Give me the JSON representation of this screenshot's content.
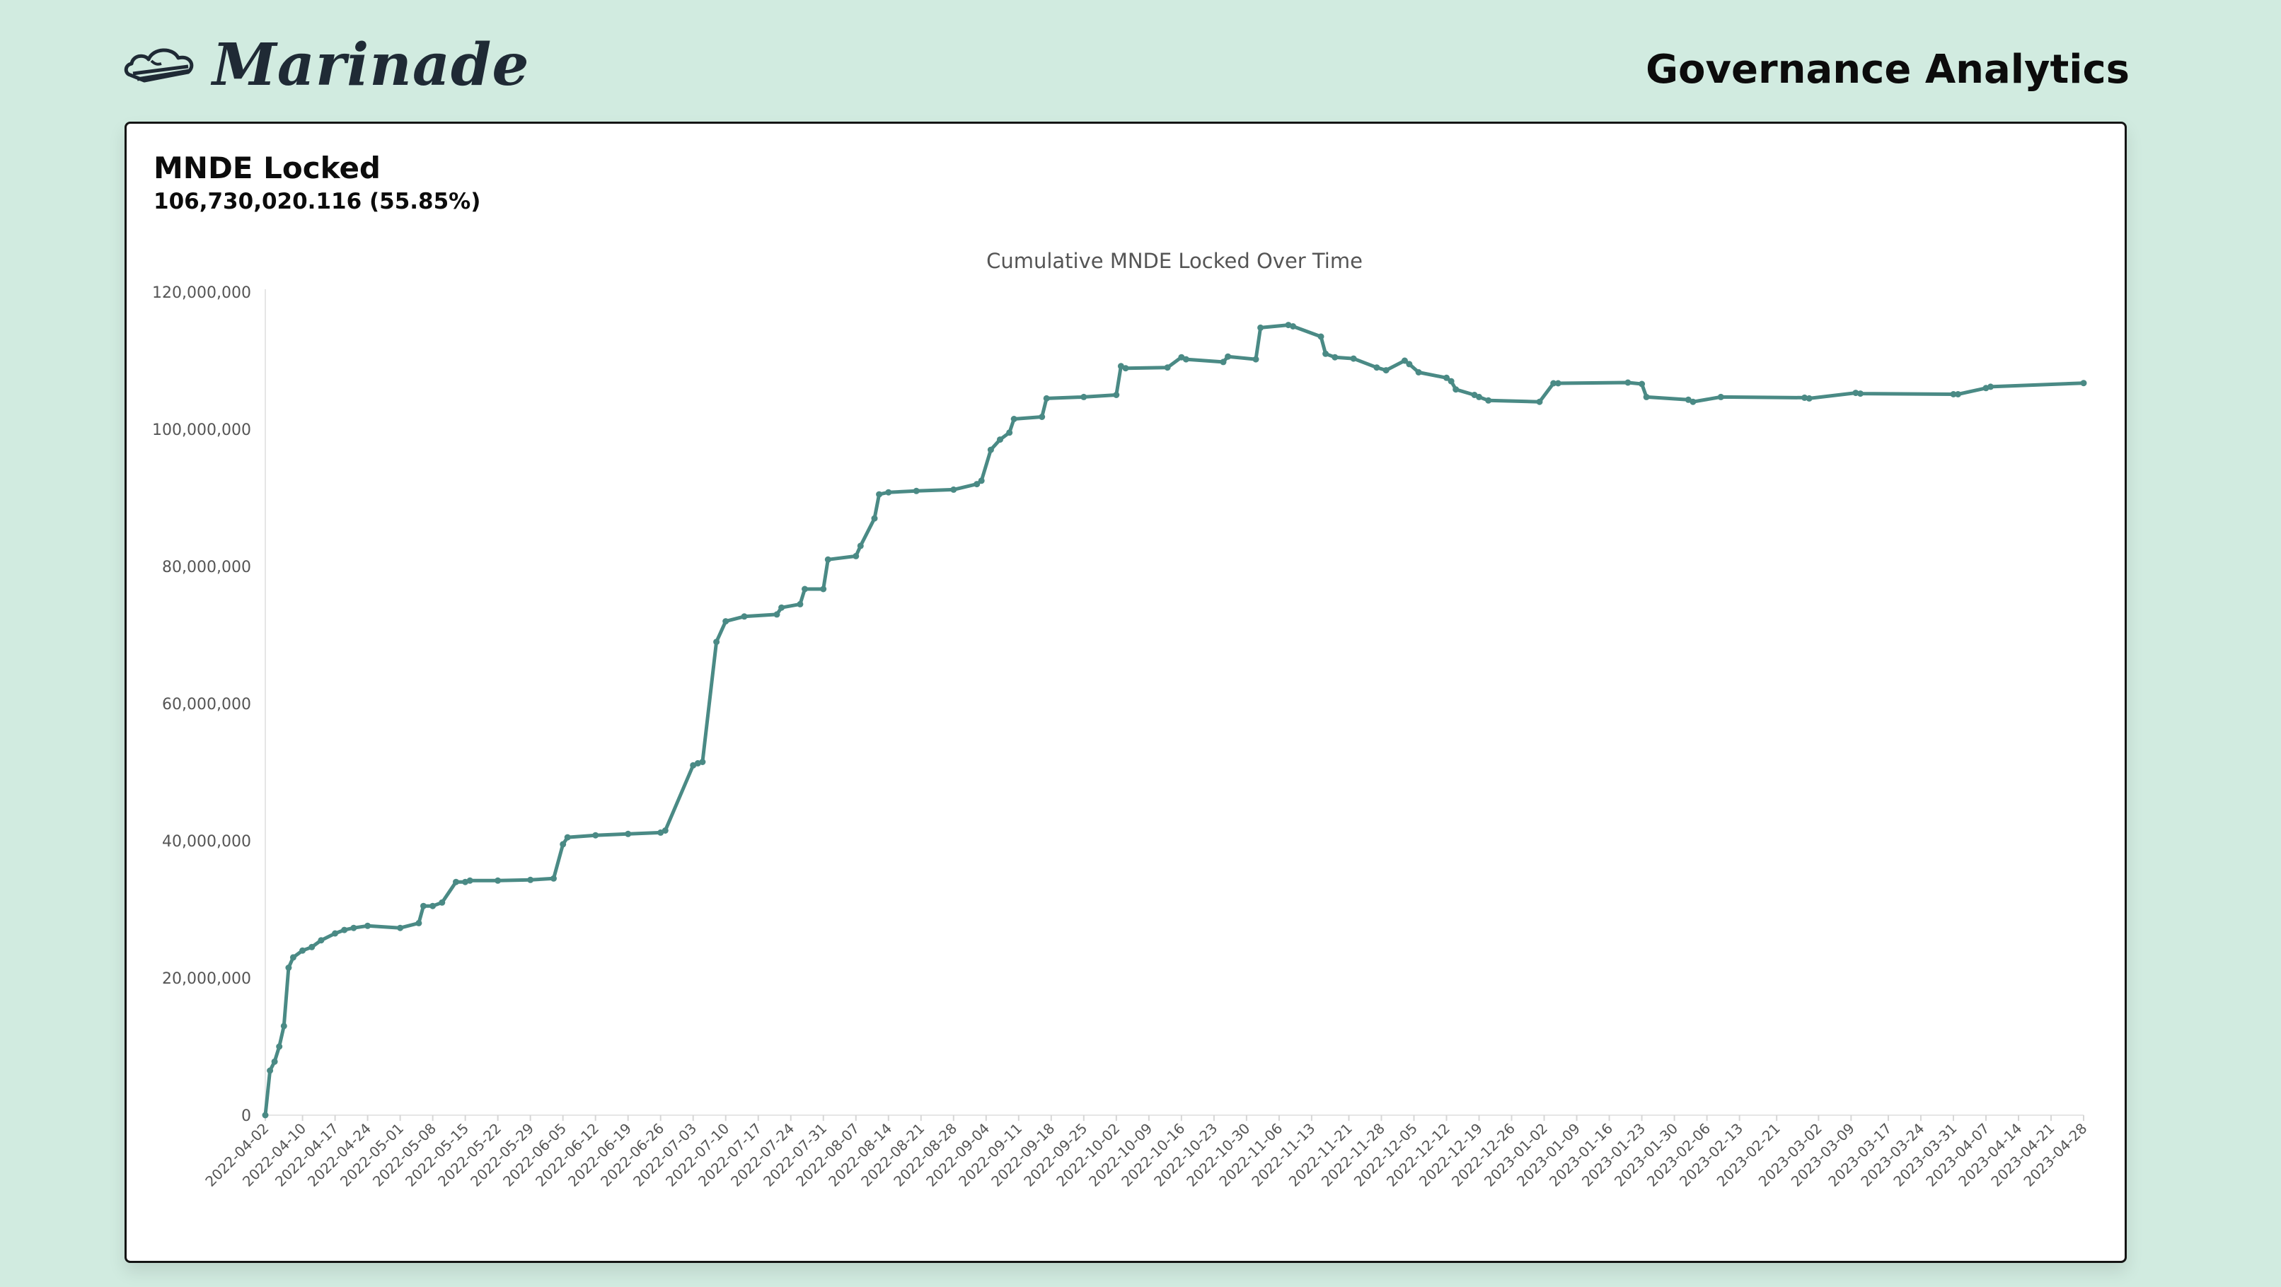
{
  "header": {
    "brand": "Marinade",
    "title": "Governance Analytics"
  },
  "card": {
    "title": "MNDE Locked",
    "value": "106,730,020.116 (55.85%)"
  },
  "colors": {
    "background": "#d1ebe0",
    "line": "#4a8a85",
    "axis_text": "#555555"
  },
  "chart_data": {
    "type": "line",
    "title": "Cumulative MNDE Locked Over Time",
    "xlabel": "",
    "ylabel": "",
    "ylim": [
      0,
      120000000
    ],
    "yticks": [
      0,
      20000000,
      40000000,
      60000000,
      80000000,
      100000000,
      120000000
    ],
    "ytick_labels": [
      "0",
      "20,000,000",
      "40,000,000",
      "60,000,000",
      "80,000,000",
      "100,000,000",
      "120,000,000"
    ],
    "xlim": [
      "2022-04-02",
      "2023-04-28"
    ],
    "xtick_labels": [
      "2022-04-02",
      "2022-04-10",
      "2022-04-17",
      "2022-04-24",
      "2022-05-01",
      "2022-05-08",
      "2022-05-15",
      "2022-05-22",
      "2022-05-29",
      "2022-06-05",
      "2022-06-12",
      "2022-06-19",
      "2022-06-26",
      "2022-07-03",
      "2022-07-10",
      "2022-07-17",
      "2022-07-24",
      "2022-07-31",
      "2022-08-07",
      "2022-08-14",
      "2022-08-21",
      "2022-08-28",
      "2022-09-04",
      "2022-09-11",
      "2022-09-18",
      "2022-09-25",
      "2022-10-02",
      "2022-10-09",
      "2022-10-16",
      "2022-10-23",
      "2022-10-30",
      "2022-11-06",
      "2022-11-13",
      "2022-11-21",
      "2022-11-28",
      "2022-12-05",
      "2022-12-12",
      "2022-12-19",
      "2022-12-26",
      "2023-01-02",
      "2023-01-09",
      "2023-01-16",
      "2023-01-23",
      "2023-01-30",
      "2023-02-06",
      "2023-02-13",
      "2023-02-21",
      "2023-03-02",
      "2023-03-09",
      "2023-03-17",
      "2023-03-24",
      "2023-03-31",
      "2023-04-07",
      "2023-04-14",
      "2023-04-21",
      "2023-04-28"
    ],
    "series": [
      {
        "x": [
          "2022-04-02",
          "2022-04-03",
          "2022-04-04",
          "2022-04-05",
          "2022-04-06",
          "2022-04-07",
          "2022-04-08",
          "2022-04-10",
          "2022-04-12",
          "2022-04-14",
          "2022-04-17",
          "2022-04-19",
          "2022-04-21",
          "2022-04-24",
          "2022-05-01",
          "2022-05-05",
          "2022-05-06",
          "2022-05-08",
          "2022-05-10",
          "2022-05-13",
          "2022-05-15",
          "2022-05-16",
          "2022-05-22",
          "2022-05-29",
          "2022-06-03",
          "2022-06-05",
          "2022-06-06",
          "2022-06-12",
          "2022-06-19",
          "2022-06-26",
          "2022-06-27",
          "2022-07-03",
          "2022-07-04",
          "2022-07-05",
          "2022-07-08",
          "2022-07-10",
          "2022-07-14",
          "2022-07-21",
          "2022-07-22",
          "2022-07-26",
          "2022-07-27",
          "2022-07-31",
          "2022-08-01",
          "2022-08-07",
          "2022-08-08",
          "2022-08-11",
          "2022-08-12",
          "2022-08-14",
          "2022-08-20",
          "2022-08-28",
          "2022-09-02",
          "2022-09-03",
          "2022-09-05",
          "2022-09-07",
          "2022-09-09",
          "2022-09-10",
          "2022-09-16",
          "2022-09-17",
          "2022-09-25",
          "2022-10-02",
          "2022-10-03",
          "2022-10-04",
          "2022-10-13",
          "2022-10-16",
          "2022-10-17",
          "2022-10-25",
          "2022-10-26",
          "2022-11-01",
          "2022-11-02",
          "2022-11-08",
          "2022-11-09",
          "2022-11-15",
          "2022-11-16",
          "2022-11-18",
          "2022-11-22",
          "2022-11-27",
          "2022-11-29",
          "2022-12-03",
          "2022-12-04",
          "2022-12-06",
          "2022-12-12",
          "2022-12-13",
          "2022-12-14",
          "2022-12-18",
          "2022-12-19",
          "2022-12-21",
          "2023-01-01",
          "2023-01-04",
          "2023-01-05",
          "2023-01-20",
          "2023-01-23",
          "2023-01-24",
          "2023-02-02",
          "2023-02-03",
          "2023-02-09",
          "2023-02-27",
          "2023-02-28",
          "2023-03-10",
          "2023-03-11",
          "2023-03-31",
          "2023-04-01",
          "2023-04-07",
          "2023-04-08",
          "2023-04-28"
        ],
        "y": [
          0,
          6500000,
          7800000,
          10000000,
          13000000,
          21500000,
          23000000,
          24000000,
          24500000,
          25500000,
          26500000,
          27000000,
          27300000,
          27600000,
          27300000,
          28000000,
          30500000,
          30500000,
          31000000,
          34000000,
          34000000,
          34200000,
          34200000,
          34300000,
          34500000,
          39500000,
          40500000,
          40800000,
          41000000,
          41200000,
          41500000,
          51000000,
          51300000,
          51500000,
          69000000,
          72000000,
          72700000,
          73000000,
          74000000,
          74500000,
          76700000,
          76700000,
          81000000,
          81500000,
          83000000,
          87000000,
          90500000,
          90800000,
          91000000,
          91200000,
          92000000,
          92500000,
          97000000,
          98500000,
          99500000,
          101500000,
          101800000,
          104500000,
          104700000,
          105000000,
          109200000,
          108900000,
          109000000,
          110500000,
          110200000,
          109800000,
          110600000,
          110200000,
          114800000,
          115200000,
          115000000,
          113500000,
          111000000,
          110500000,
          110300000,
          109000000,
          108600000,
          110000000,
          109500000,
          108300000,
          107500000,
          107000000,
          105800000,
          105000000,
          104700000,
          104200000,
          104000000,
          106700000,
          106700000,
          106800000,
          106600000,
          104700000,
          104300000,
          104000000,
          104700000,
          104600000,
          104500000,
          105300000,
          105200000,
          105100000,
          105100000,
          106000000,
          106200000,
          106730000
        ]
      }
    ]
  }
}
